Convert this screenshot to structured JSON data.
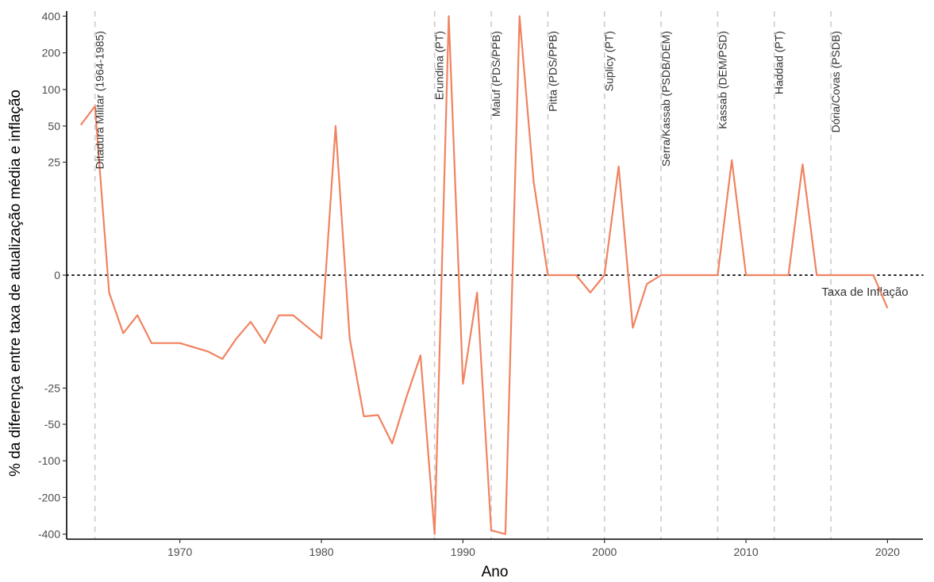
{
  "chart_data": {
    "type": "line",
    "xlabel": "Ano",
    "ylabel": "% da diferença entre taxa de atualização média e inflação",
    "xlim": [
      1962,
      2022.5
    ],
    "ylim": [
      -440,
      440
    ],
    "y_scale": "pseudo-log",
    "x_ticks": [
      1970,
      1980,
      1990,
      2000,
      2010,
      2020
    ],
    "y_ticks": [
      -400,
      -200,
      -100,
      -50,
      -25,
      0,
      25,
      50,
      100,
      200,
      400
    ],
    "grid": false,
    "reference_line": {
      "y": 0,
      "label": "Taxa de Inflação",
      "style": "dotted"
    },
    "periods": [
      {
        "x": 1964,
        "label": "Ditadura Militar (1964-1985)"
      },
      {
        "x": 1988,
        "label": "Erundina (PT)"
      },
      {
        "x": 1992,
        "label": "Maluf (PDS/PPB)"
      },
      {
        "x": 1996,
        "label": "Pitta (PDS/PPB)"
      },
      {
        "x": 2000,
        "label": "Suplicy (PT)"
      },
      {
        "x": 2004,
        "label": "Serra/Kassab (PSDB/DEM)"
      },
      {
        "x": 2008,
        "label": "Kassab (DEM/PSD)"
      },
      {
        "x": 2012,
        "label": "Haddad (PT)"
      },
      {
        "x": 2016,
        "label": "Dória/Covas (PSDB)"
      }
    ],
    "series": [
      {
        "color": "#f08360",
        "points": [
          [
            1963,
            51
          ],
          [
            1964,
            73
          ],
          [
            1965,
            -2
          ],
          [
            1966,
            -8
          ],
          [
            1967,
            -5
          ],
          [
            1968,
            -10
          ],
          [
            1970,
            -10
          ],
          [
            1972,
            -12
          ],
          [
            1973,
            -14
          ],
          [
            1974,
            -9
          ],
          [
            1975,
            -6
          ],
          [
            1976,
            -10
          ],
          [
            1977,
            -5
          ],
          [
            1978,
            -5
          ],
          [
            1980,
            -9
          ],
          [
            1981,
            50
          ],
          [
            1982,
            -9
          ],
          [
            1983,
            -43
          ],
          [
            1984,
            -42
          ],
          [
            1985,
            -72
          ],
          [
            1986,
            -30
          ],
          [
            1987,
            -13
          ],
          [
            1988,
            -400
          ],
          [
            1989,
            400
          ],
          [
            1990,
            -23
          ],
          [
            1991,
            -2
          ],
          [
            1992,
            -372
          ],
          [
            1993,
            -400
          ],
          [
            1994,
            400
          ],
          [
            1995,
            17
          ],
          [
            1996,
            0
          ],
          [
            1997,
            0
          ],
          [
            1998,
            0
          ],
          [
            1999,
            -2
          ],
          [
            2000,
            0
          ],
          [
            2001,
            23
          ],
          [
            2002,
            -7
          ],
          [
            2003,
            -1
          ],
          [
            2004,
            0
          ],
          [
            2005,
            0
          ],
          [
            2006,
            0
          ],
          [
            2007,
            0
          ],
          [
            2008,
            0
          ],
          [
            2009,
            26
          ],
          [
            2010,
            0
          ],
          [
            2011,
            0
          ],
          [
            2012,
            0
          ],
          [
            2013,
            0
          ],
          [
            2014,
            24
          ],
          [
            2015,
            0
          ],
          [
            2016,
            0
          ],
          [
            2017,
            0
          ],
          [
            2018,
            0
          ],
          [
            2019,
            0
          ],
          [
            2020,
            -4
          ]
        ]
      }
    ]
  }
}
